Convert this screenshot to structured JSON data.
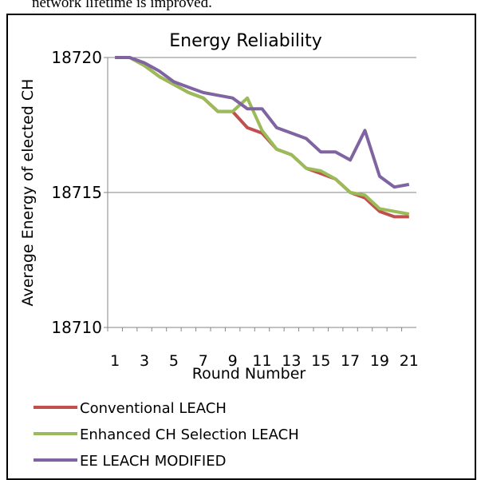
{
  "page_text": "network lifetime is improved.",
  "chart_data": {
    "type": "line",
    "title": "Energy Reliability",
    "x_label": "Round Number",
    "y_label": "Average Energy of elected CH",
    "categories": [
      1,
      null,
      3,
      null,
      5,
      null,
      7,
      null,
      9,
      null,
      11,
      null,
      13,
      null,
      15,
      null,
      17,
      null,
      19,
      null,
      21
    ],
    "series": [
      {
        "name": "Conventional LEACH",
        "color": "#c0504d",
        "values": [
          18720,
          18720,
          18719.7,
          18719.3,
          18719.0,
          18718.7,
          18718.5,
          18718.0,
          18718.0,
          18717.4,
          18717.2,
          18716.6,
          18716.4,
          18715.9,
          18715.7,
          18715.5,
          18715.0,
          18714.8,
          18714.3,
          18714.1,
          18714.1
        ]
      },
      {
        "name": "Enhanced CH Selection LEACH",
        "color": "#9bbb59",
        "values": [
          18720,
          18720,
          18719.7,
          18719.3,
          18719.0,
          18718.7,
          18718.5,
          18718.0,
          18718.0,
          18718.5,
          18717.3,
          18716.6,
          18716.4,
          18715.9,
          18715.8,
          18715.5,
          18715.0,
          18714.9,
          18714.4,
          18714.3,
          18714.2
        ]
      },
      {
        "name": "EE LEACH MODIFIED",
        "color": "#8064a2",
        "values": [
          18720,
          18720,
          18719.8,
          18719.5,
          18719.1,
          18718.9,
          18718.7,
          18718.6,
          18718.5,
          18718.1,
          18718.1,
          18717.4,
          18717.2,
          18717.0,
          18716.5,
          18716.5,
          18716.2,
          18717.3,
          18715.6,
          18715.2,
          18715.3
        ]
      }
    ],
    "ylim": [
      18710,
      18720
    ],
    "yticks": [
      18710,
      18715,
      18720
    ],
    "grid": true,
    "legend": "bottom"
  }
}
